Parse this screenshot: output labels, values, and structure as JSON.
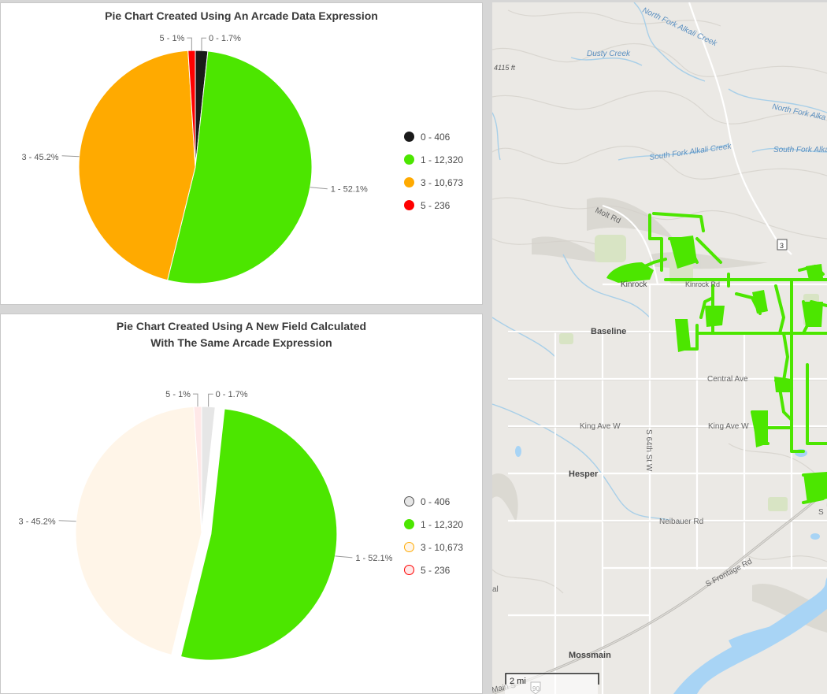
{
  "charts": [
    {
      "title_lines": [
        "Pie Chart Created Using An Arcade Data Expression"
      ],
      "legend": [
        {
          "label": "0 - 406",
          "color": "#1a1a1a"
        },
        {
          "label": "1 - 12,320",
          "color": "#4ce600"
        },
        {
          "label": "3 - 10,673",
          "color": "#ffaa00"
        },
        {
          "label": "5 - 236",
          "color": "#ff0000"
        }
      ],
      "slice_labels": {
        "s0": "0 - 1.7%",
        "s1": "1 - 52.1%",
        "s3": "3 - 45.2%",
        "s5": "5 - 1%"
      }
    },
    {
      "title_lines": [
        "Pie Chart Created Using A New Field Calculated",
        "With The Same Arcade Expression"
      ],
      "legend": [
        {
          "label": "0 - 406",
          "color": "#e6e6e6",
          "border": "#555555"
        },
        {
          "label": "1 - 12,320",
          "color": "#4ce600",
          "border": "#4ce600"
        },
        {
          "label": "3 - 10,673",
          "color": "#fff5e8",
          "border": "#ffaa00"
        },
        {
          "label": "5 - 236",
          "color": "#ffe8e8",
          "border": "#ff0000"
        }
      ],
      "slice_labels": {
        "s0": "0 - 1.7%",
        "s1": "1 - 52.1%",
        "s3": "3 - 45.2%",
        "s5": "5 - 1%"
      }
    }
  ],
  "chart_data": [
    {
      "type": "pie",
      "title": "Pie Chart Created Using An Arcade Data Expression",
      "categories": [
        "0",
        "1",
        "3",
        "5"
      ],
      "values": [
        406,
        12320,
        10673,
        236
      ],
      "percent": [
        1.7,
        52.1,
        45.2,
        1.0
      ],
      "colors": [
        "#1a1a1a",
        "#4ce600",
        "#ffaa00",
        "#ff0000"
      ],
      "legend_position": "right"
    },
    {
      "type": "pie",
      "title": "Pie Chart Created Using A New Field Calculated With The Same Arcade Expression",
      "categories": [
        "0",
        "1",
        "3",
        "5"
      ],
      "values": [
        406,
        12320,
        10673,
        236
      ],
      "percent": [
        1.7,
        52.1,
        45.2,
        1.0
      ],
      "colors": [
        "#e6e6e6",
        "#4ce600",
        "#fff5e8",
        "#ffe8e8"
      ],
      "selected_category": "1",
      "legend_position": "right"
    }
  ],
  "map": {
    "labels": {
      "north_fork_alkali": "North Fork Alkali Creek",
      "dusty_creek": "Dusty Creek",
      "elev": "4115 ft",
      "north_fork_right": "North Fork Alka",
      "south_fork_alkali": "South Fork Alkali Creek",
      "south_fork_right": "South Fork Alka",
      "molt_rd": "Molt Rd",
      "route_3": "3",
      "kinrock": "Kinrock",
      "kinrock_rd": "Kinrock Rd",
      "baseline": "Baseline",
      "central_ave": "Central Ave",
      "king_ave_w1": "King Ave W",
      "king_ave_w2": "King Ave W",
      "s64th": "S 64th St W",
      "hesper": "Hesper",
      "neibauer": "Neibauer Rd",
      "frontage": "S Frontage Rd",
      "s_right": "S",
      "al": "al",
      "mossmain": "Mossmain",
      "main_s": "Main S",
      "i90": "90",
      "scale": "2 mi"
    }
  }
}
